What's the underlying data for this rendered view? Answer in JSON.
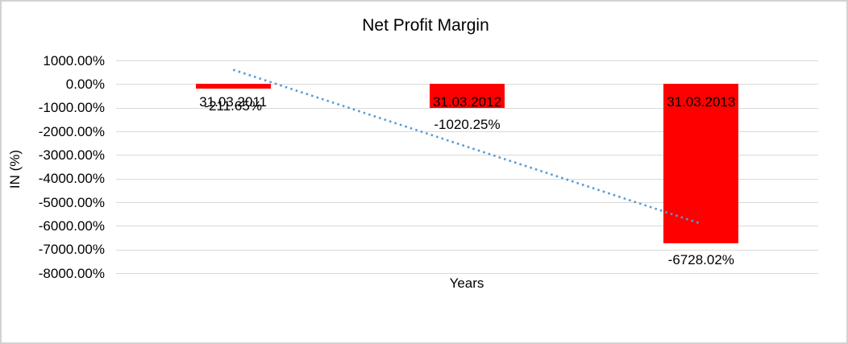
{
  "frame": {
    "background": "#ffffff",
    "border_color": "#d2d2d2"
  },
  "chart_data": {
    "type": "bar",
    "title": "Net Profit Margin",
    "xlabel": "Years",
    "ylabel": "IN (%)",
    "categories": [
      "31.03.2011",
      "31.03.2012",
      "31.03.2013"
    ],
    "series": [
      {
        "name": "Net Profit Margin",
        "values": [
          -211.65,
          -1020.25,
          -6728.02
        ]
      }
    ],
    "data_labels": [
      "-211.65%",
      "-1020.25%",
      "-6728.02%"
    ],
    "ylim": [
      -8000,
      1000
    ],
    "ytick_values": [
      1000,
      0,
      -1000,
      -2000,
      -3000,
      -4000,
      -5000,
      -6000,
      -7000,
      -8000
    ],
    "ytick_labels": [
      "1000.00%",
      "0.00%",
      "-1000.00%",
      "-2000.00%",
      "-3000.00%",
      "-4000.00%",
      "-5000.00%",
      "-6000.00%",
      "-7000.00%",
      "-8000.00%"
    ],
    "grid": true,
    "legend": "none",
    "colors": {
      "bar": "#ff0000",
      "gridline": "#d9d9d9",
      "trendline": "#5b9bd5",
      "text": "#000000"
    },
    "trendline": {
      "type": "linear",
      "style": "dotted"
    }
  }
}
